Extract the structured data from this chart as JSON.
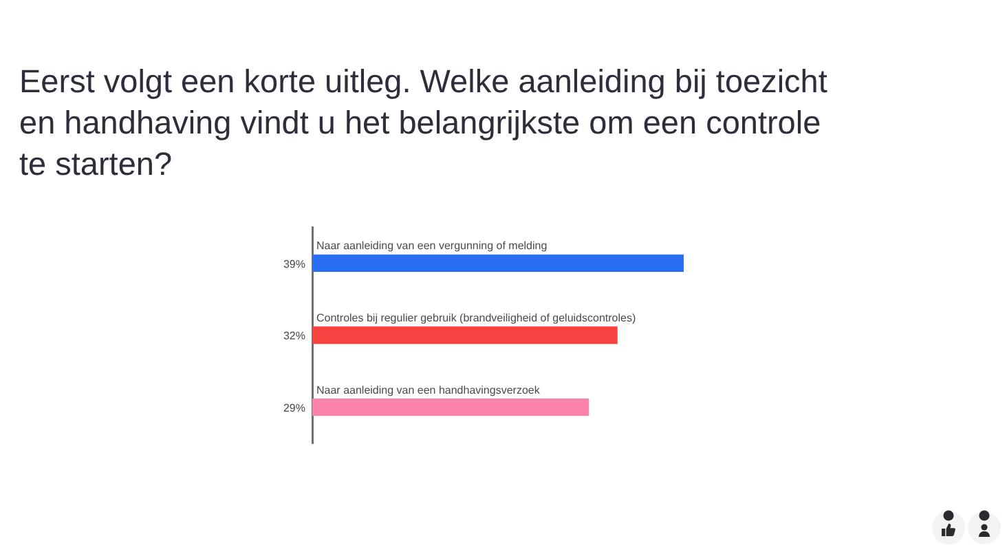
{
  "chart_data": {
    "type": "bar",
    "orientation": "horizontal",
    "title": "Eerst volgt een korte uitleg. Welke aanleiding bij toezicht en handhaving vindt u het belangrijkste om een controle te starten?",
    "categories": [
      "Naar aanleiding van een vergunning of melding",
      "Controles bij regulier gebruik (brandveiligheid of geluidscontroles)",
      "Naar aanleiding van een handhavingsverzoek"
    ],
    "values": [
      39,
      32,
      29
    ],
    "colors": [
      "#2a6ef2",
      "#f7433f",
      "#fb82a8"
    ],
    "value_labels": [
      "39%",
      "32%",
      "29%"
    ],
    "tick_labels": "y"
  }
}
